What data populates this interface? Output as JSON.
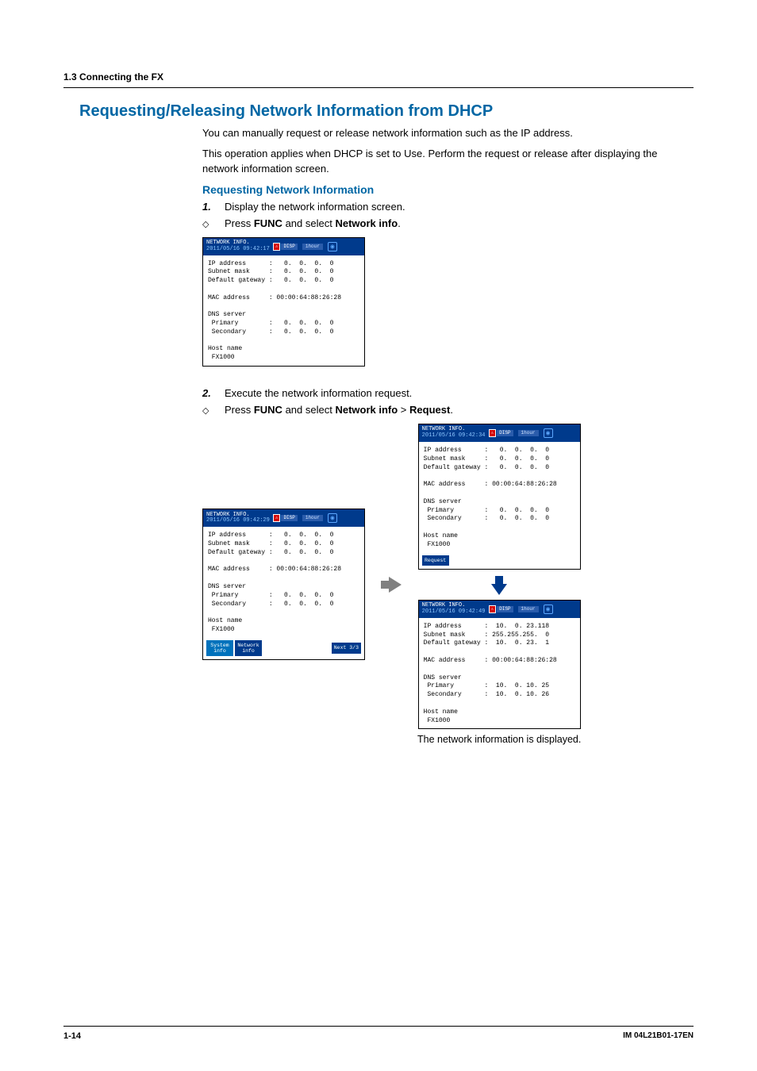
{
  "page": {
    "breadcrumb": "1.3  Connecting the FX",
    "section_title": "Requesting/Releasing Network Information from DHCP",
    "intro1": "You can manually request or release network information such as the IP address.",
    "intro2": "This operation applies when DHCP is set to Use. Perform the request or release after displaying the network information screen.",
    "sub_heading": "Requesting Network Information",
    "step1_num": "1.",
    "step1_text": "Display the network information screen.",
    "bullet1_pre": "Press ",
    "bullet1_b1": "FUNC",
    "bullet1_mid": " and select ",
    "bullet1_b2": "Network info",
    "bullet1_post": ".",
    "step2_num": "2.",
    "step2_text": "Execute the network information request.",
    "bullet2_pre": "Press ",
    "bullet2_b1": "FUNC",
    "bullet2_mid": " and select ",
    "bullet2_b2": "Network info",
    "bullet2_gt": " > ",
    "bullet2_b3": "Request",
    "bullet2_post": ".",
    "caption": "The network information is displayed.",
    "footer_left": "1-14",
    "footer_right": "IM 04L21B01-17EN"
  },
  "titlebar": {
    "title": "NETWORK INFO.",
    "badge_disp": "DISP",
    "badge_time": "1hour",
    "icon": "◉"
  },
  "ss1": {
    "timestamp": "2011/05/16 09:42:17",
    "rows": [
      "IP address      :   0.  0.  0.  0",
      "Subnet mask     :   0.  0.  0.  0",
      "Default gateway :   0.  0.  0.  0",
      "",
      "MAC address     : 00:00:64:88:26:28",
      "",
      "DNS server",
      " Primary        :   0.  0.  0.  0",
      " Secondary      :   0.  0.  0.  0",
      "",
      "Host name",
      " FX1000"
    ]
  },
  "ss2": {
    "timestamp": "2011/05/16 09:42:29",
    "rows": [
      "IP address      :   0.  0.  0.  0",
      "Subnet mask     :   0.  0.  0.  0",
      "Default gateway :   0.  0.  0.  0",
      "",
      "MAC address     : 00:00:64:88:26:28",
      "",
      "DNS server",
      " Primary        :   0.  0.  0.  0",
      " Secondary      :   0.  0.  0.  0",
      "",
      "Host name",
      " FX1000"
    ],
    "btn_sys": "System\ninfo",
    "btn_net": "Network\ninfo",
    "btn_next": "Next 3/3"
  },
  "ss3": {
    "timestamp": "2011/05/16 09:42:34",
    "rows": [
      "IP address      :   0.  0.  0.  0",
      "Subnet mask     :   0.  0.  0.  0",
      "Default gateway :   0.  0.  0.  0",
      "",
      "MAC address     : 00:00:64:88:26:28",
      "",
      "DNS server",
      " Primary        :   0.  0.  0.  0",
      " Secondary      :   0.  0.  0.  0",
      "",
      "Host name",
      " FX1000"
    ],
    "btn_req": "Request"
  },
  "ss4": {
    "timestamp": "2011/05/16 09:42:49",
    "rows": [
      "IP address      :  10.  0. 23.118",
      "Subnet mask     : 255.255.255.  0",
      "Default gateway :  10.  0. 23.  1",
      "",
      "MAC address     : 00:00:64:88:26:28",
      "",
      "DNS server",
      " Primary        :  10.  0. 10. 25",
      " Secondary      :  10.  0. 10. 26",
      "",
      "Host name",
      " FX1000"
    ]
  },
  "colors": {
    "heading": "#0066a4",
    "titlebar_bg": "#003a8c",
    "badge_red": "#d40000",
    "arrow_gray": "#808080",
    "arrow_blue": "#003a8c"
  }
}
